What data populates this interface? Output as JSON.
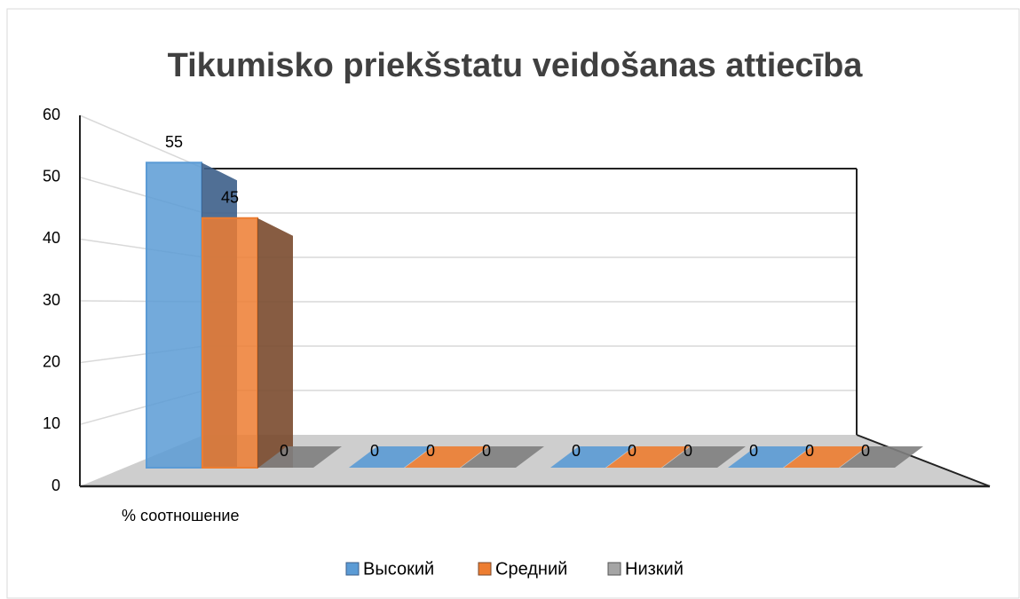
{
  "chart_data": {
    "type": "bar3d",
    "title": "Tikumisko priekšstatu veidošanas attiecība",
    "categories": [
      "% соотношение",
      null,
      null,
      null
    ],
    "series": [
      {
        "name": "Высокий",
        "color": "#5b9bd5",
        "values": [
          55,
          0,
          0,
          0
        ]
      },
      {
        "name": "Средний",
        "color": "#ed7d31",
        "values": [
          45,
          0,
          0,
          0
        ]
      },
      {
        "name": "Низкий",
        "color": "#a5a5a5",
        "values": [
          0,
          0,
          0,
          0
        ]
      }
    ],
    "ylim": [
      0,
      60
    ],
    "yticks": [
      0,
      10,
      20,
      30,
      40,
      50,
      60
    ],
    "grid": true,
    "legend": "bottom"
  }
}
